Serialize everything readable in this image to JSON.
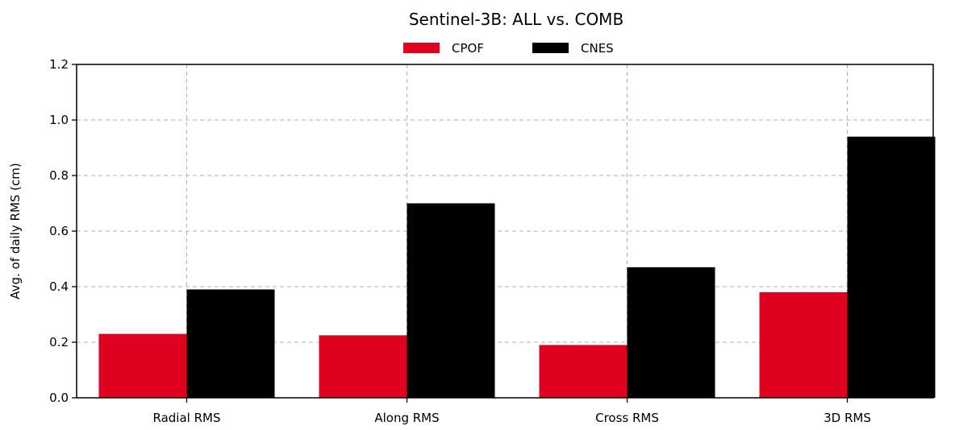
{
  "chart_data": {
    "type": "bar",
    "title": "Sentinel-3B: ALL vs. COMB",
    "xlabel": "",
    "ylabel": "Avg. of daily RMS (cm)",
    "categories": [
      "Radial RMS",
      "Along RMS",
      "Cross RMS",
      "3D RMS"
    ],
    "series": [
      {
        "name": "CPOF",
        "color": "#e00020",
        "values": [
          0.23,
          0.225,
          0.19,
          0.38
        ]
      },
      {
        "name": "CNES",
        "color": "#000000",
        "values": [
          0.39,
          0.7,
          0.47,
          0.94
        ]
      }
    ],
    "ylim": [
      0,
      1.2
    ],
    "yticks": [
      "0.0",
      "0.2",
      "0.4",
      "0.6",
      "0.8",
      "1.0",
      "1.2"
    ],
    "grid": true,
    "legend_position": "top-center"
  }
}
